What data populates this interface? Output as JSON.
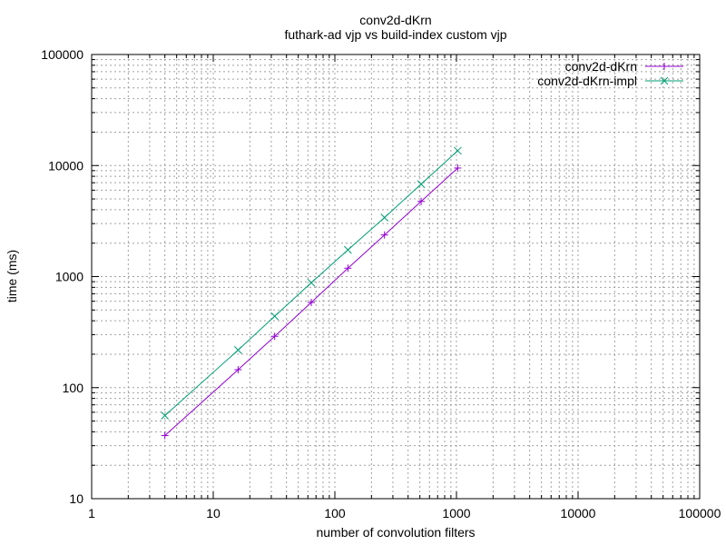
{
  "chart_data": {
    "type": "line",
    "title": "conv2d-dKrn",
    "subtitle": "futhark-ad vjp vs build-index custom vjp",
    "xlabel": "number of convolution filters",
    "ylabel": "time (ms)",
    "xscale": "log",
    "yscale": "log",
    "xlim": [
      1,
      100000
    ],
    "ylim": [
      10,
      100000
    ],
    "xticks": [
      1,
      10,
      100,
      1000,
      10000,
      100000
    ],
    "xtick_labels": [
      "1",
      "10",
      "100",
      "1000",
      "10000",
      "100000"
    ],
    "yticks": [
      10,
      100,
      1000,
      10000,
      100000
    ],
    "ytick_labels": [
      "10",
      "100",
      "1000",
      "10000",
      "100000"
    ],
    "grid": true,
    "legend_position": "top-right",
    "series": [
      {
        "name": "conv2d-dKrn",
        "color": "#9400d3",
        "marker": "plus",
        "x": [
          4,
          16,
          32,
          64,
          128,
          256,
          512,
          1024
        ],
        "y": [
          37,
          145,
          290,
          585,
          1190,
          2370,
          4750,
          9500
        ]
      },
      {
        "name": "conv2d-dKrn-impl",
        "color": "#009e73",
        "marker": "cross",
        "x": [
          4,
          16,
          32,
          64,
          128,
          256,
          512,
          1024
        ],
        "y": [
          56,
          218,
          440,
          880,
          1740,
          3400,
          6800,
          13600
        ]
      }
    ]
  }
}
